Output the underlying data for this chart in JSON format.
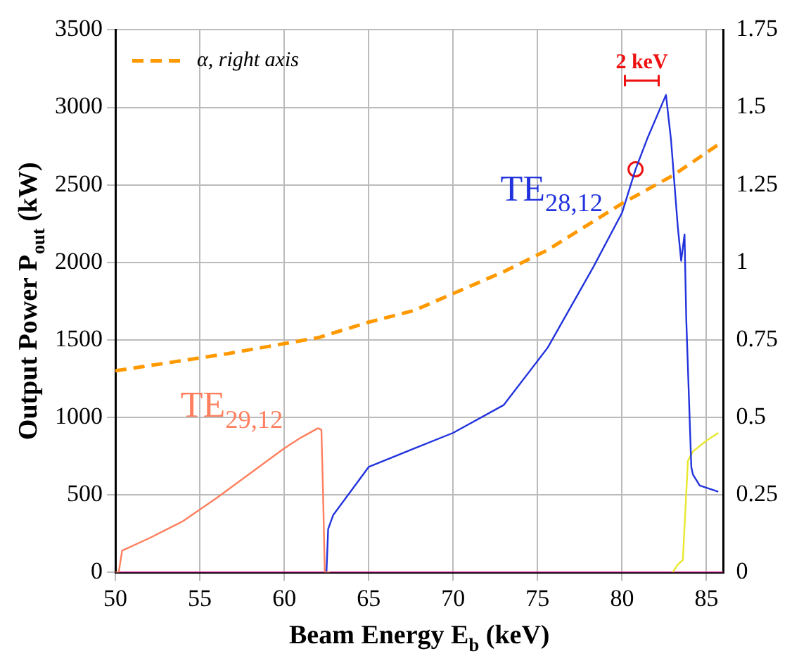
{
  "chart_data": {
    "type": "line",
    "xlabel": "Beam Energy E$_{b}$ (keV)",
    "ylabel": "Output Power P$_{out}$ (kW)",
    "xlim": [
      50,
      86
    ],
    "xticks": [
      50,
      55,
      60,
      65,
      70,
      75,
      80,
      85
    ],
    "ylim": [
      0,
      3500
    ],
    "yticks": [
      0,
      500,
      1000,
      1500,
      2000,
      2500,
      3000,
      3500
    ],
    "y2lim": [
      0,
      1.75
    ],
    "y2ticks": [
      0,
      0.25,
      0.5,
      0.75,
      1,
      1.25,
      1.5,
      1.75
    ],
    "grid": true,
    "legend": "top left",
    "marker": "none",
    "series": [
      {
        "name": "TE$_{29,12}$",
        "color": "#ff7f5e",
        "x": [
          50,
          50.2,
          50.4,
          52,
          54,
          56,
          58,
          60,
          61,
          62,
          62.2,
          62.3,
          62.4,
          62.7
        ],
        "values": [
          0,
          0,
          140,
          220,
          330,
          480,
          640,
          800,
          870,
          930,
          920,
          500,
          0,
          0
        ]
      },
      {
        "name": "TE$_{28,12}$",
        "color": "#2233dd",
        "x": [
          62.5,
          62.6,
          62.9,
          65,
          67.7,
          70,
          73,
          75.6,
          78.3,
          80,
          80.8,
          81.5,
          82.6,
          82.9,
          83.3,
          83.5,
          83.7,
          83.8,
          84.1,
          84.2,
          84.6,
          85.7
        ],
        "values": [
          0,
          280,
          370,
          680,
          800,
          900,
          1080,
          1450,
          1970,
          2320,
          2600,
          2800,
          3080,
          2790,
          2230,
          2010,
          2180,
          1640,
          680,
          630,
          560,
          520
        ]
      },
      {
        "color": "#e8e830",
        "x": [
          83.0,
          83.3,
          83.6,
          83.9,
          84.2,
          85,
          85.7
        ],
        "values": [
          0,
          50,
          80,
          720,
          780,
          850,
          900
        ]
      },
      {
        "color": "#e0209a",
        "x": [
          50,
          86
        ],
        "values": [
          0,
          0
        ]
      },
      {
        "name": "α, right axis",
        "color": "#ff9900",
        "axis": "y2",
        "line_style": "dashed",
        "x": [
          50,
          56.6,
          62,
          65,
          67.7,
          73,
          75.6,
          80,
          83,
          85.7
        ],
        "values": [
          0.65,
          0.705,
          0.757,
          0.807,
          0.845,
          0.97,
          1.04,
          1.19,
          1.28,
          1.38
        ]
      },
      {
        "type": "scatter",
        "marker": "circle",
        "color": "#ee1111",
        "x": [
          80.8
        ],
        "values": [
          2600
        ]
      }
    ],
    "annotations": [
      "2 keV"
    ]
  }
}
